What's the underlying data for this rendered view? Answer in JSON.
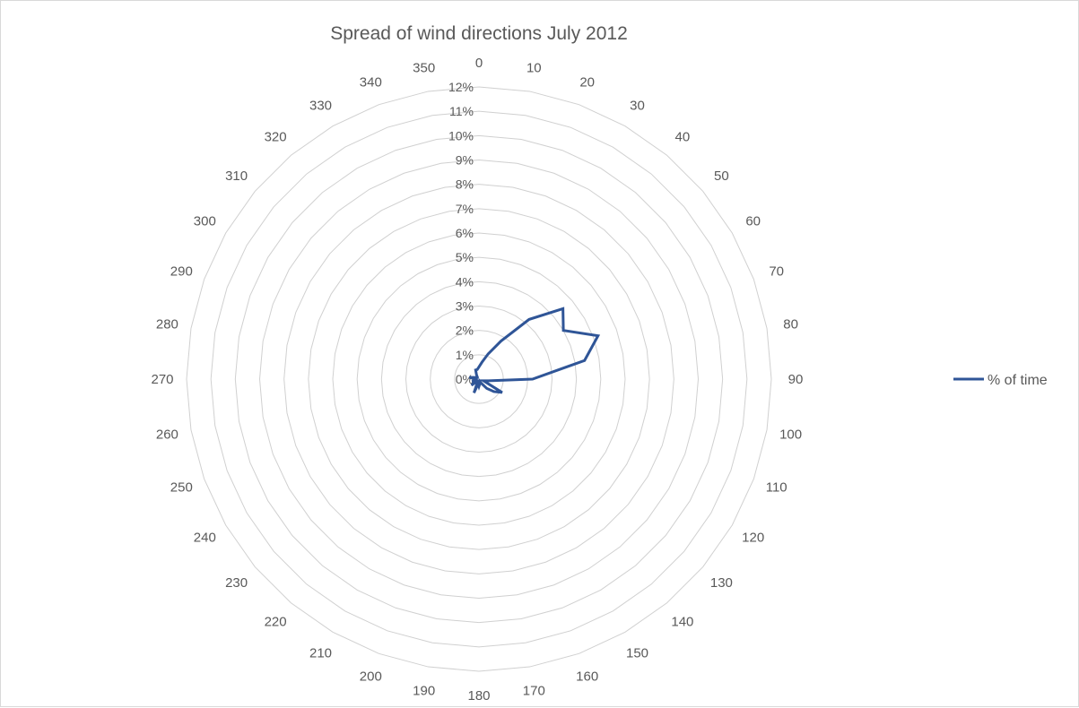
{
  "chart_data": {
    "type": "radar",
    "title": "Spread of wind directions July 2012",
    "categories": [
      "0",
      "10",
      "20",
      "30",
      "40",
      "50",
      "60",
      "70",
      "80",
      "90",
      "100",
      "110",
      "120",
      "130",
      "140",
      "150",
      "160",
      "170",
      "180",
      "190",
      "200",
      "210",
      "220",
      "230",
      "240",
      "250",
      "260",
      "270",
      "280",
      "290",
      "300",
      "310",
      "320",
      "330",
      "340",
      "350"
    ],
    "series": [
      {
        "name": "% of time",
        "color": "#2f5597",
        "values": [
          0.5,
          0.7,
          1.1,
          1.8,
          3.2,
          4.5,
          4.0,
          5.2,
          4.4,
          2.2,
          0.4,
          0.2,
          1.1,
          0.8,
          0.5,
          0.2,
          0.1,
          0.2,
          0.3,
          0.2,
          0.6,
          0.1,
          0.1,
          0.4,
          0.2,
          0.3,
          0.1,
          0.1,
          0.4,
          0.2,
          0.1,
          0.1,
          0.1,
          0.2,
          0.4,
          0.4
        ]
      }
    ],
    "radial_ticks": [
      "0%",
      "1%",
      "2%",
      "3%",
      "4%",
      "5%",
      "6%",
      "7%",
      "8%",
      "9%",
      "10%",
      "11%",
      "12%"
    ],
    "rmin": 0,
    "rmax": 12,
    "legend_position": "right",
    "grid": true
  }
}
